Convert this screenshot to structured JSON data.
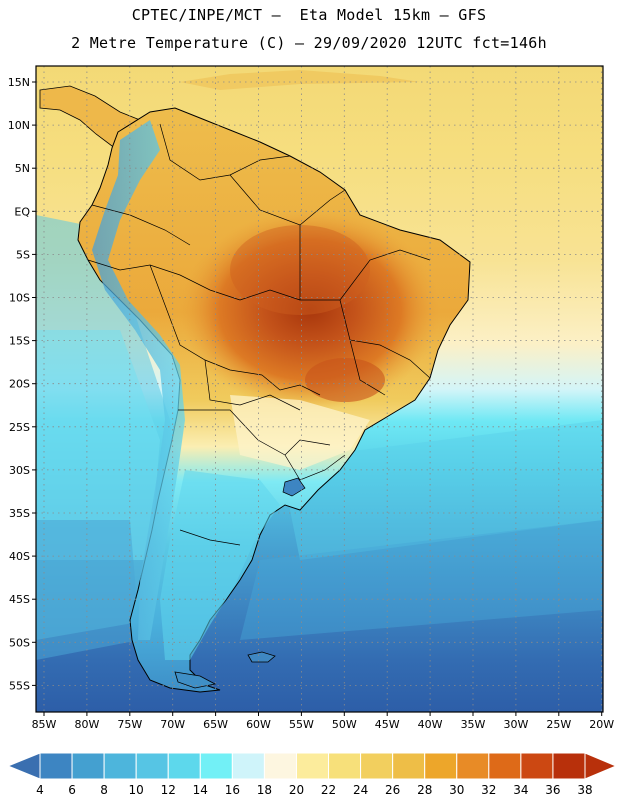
{
  "header": {
    "line1": "CPTEC/INPE/MCT –  Eta Model 15km – GFS",
    "line2": "2 Metre Temperature (C) – 29/09/2020 12UTC fct=146h"
  },
  "map": {
    "lat_labels": [
      "15N",
      "10N",
      "5N",
      "EQ",
      "5S",
      "10S",
      "15S",
      "20S",
      "25S",
      "30S",
      "35S",
      "40S",
      "45S",
      "50S",
      "55S"
    ],
    "lon_labels": [
      "85W",
      "80W",
      "75W",
      "70W",
      "65W",
      "60W",
      "55W",
      "50W",
      "45W",
      "40W",
      "35W",
      "30W",
      "25W",
      "20W"
    ]
  },
  "colorbar": {
    "labels": [
      "4",
      "6",
      "8",
      "10",
      "12",
      "14",
      "16",
      "18",
      "20",
      "22",
      "24",
      "26",
      "28",
      "30",
      "32",
      "34",
      "36",
      "38"
    ],
    "colors": [
      "#3a6fb0",
      "#3d85c2",
      "#44a0d0",
      "#4db5dc",
      "#56c5e4",
      "#5dd8ec",
      "#72f0f6",
      "#cff4fa",
      "#fdf6e0",
      "#fcec9c",
      "#f7e07a",
      "#f2cf5e",
      "#eebe47",
      "#eda62a",
      "#e88b26",
      "#de6a18",
      "#cc4812",
      "#b8300b"
    ]
  },
  "legend_colors": {
    "frame": "#000000",
    "ocean_cold": "#2f5fa8",
    "ocean_cool": "#4aa8d6",
    "ocean_mid": "#5dd3ea",
    "warm_band": "#f0d76a",
    "hot": "#c0551a"
  }
}
